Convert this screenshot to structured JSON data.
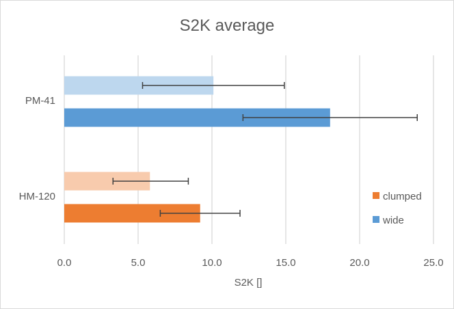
{
  "chart_data": {
    "type": "bar",
    "orientation": "horizontal",
    "title": "S2K average",
    "xlabel": "S2K []",
    "ylabel": "",
    "xlim": [
      0,
      25
    ],
    "x_ticks": [
      "0.0",
      "5.0",
      "10.0",
      "15.0",
      "20.0",
      "25.0"
    ],
    "categories": [
      "PM-41",
      "HM-120"
    ],
    "grid": "vertical",
    "legend_position": "right",
    "legend": [
      {
        "label": "clumped",
        "color": "#ed7d31"
      },
      {
        "label": "wide",
        "color": "#5b9bd5"
      }
    ],
    "bars": [
      {
        "category": "PM-41",
        "value": 10.1,
        "error_low": 5.3,
        "error_high": 14.9,
        "color": "#bdd7ee"
      },
      {
        "category": "PM-41",
        "value": 18.0,
        "error_low": 12.1,
        "error_high": 23.9,
        "color": "#5b9bd5"
      },
      {
        "category": "HM-120",
        "value": 5.8,
        "error_low": 3.3,
        "error_high": 8.4,
        "color": "#f8cbad"
      },
      {
        "category": "HM-120",
        "value": 9.2,
        "error_low": 6.5,
        "error_high": 11.9,
        "color": "#ed7d31"
      }
    ]
  }
}
